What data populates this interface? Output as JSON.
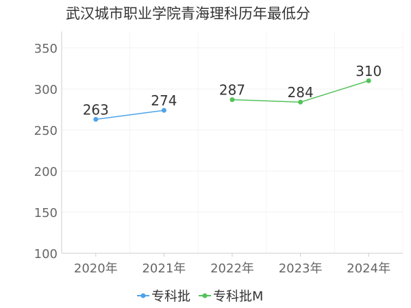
{
  "chart_data": {
    "type": "line",
    "title": "武汉城市职业学院青海理科历年最低分",
    "categories": [
      "2020年",
      "2021年",
      "2022年",
      "2023年",
      "2024年"
    ],
    "ylim": [
      100,
      370
    ],
    "yticks": [
      100,
      150,
      200,
      250,
      300,
      350
    ],
    "grid": true,
    "legend_position": "bottom",
    "series": [
      {
        "name": "专科批",
        "color": "#4da3ea",
        "values": [
          263,
          274,
          null,
          null,
          null
        ]
      },
      {
        "name": "专科批M",
        "color": "#52c25a",
        "values": [
          null,
          null,
          287,
          284,
          310
        ]
      }
    ]
  }
}
